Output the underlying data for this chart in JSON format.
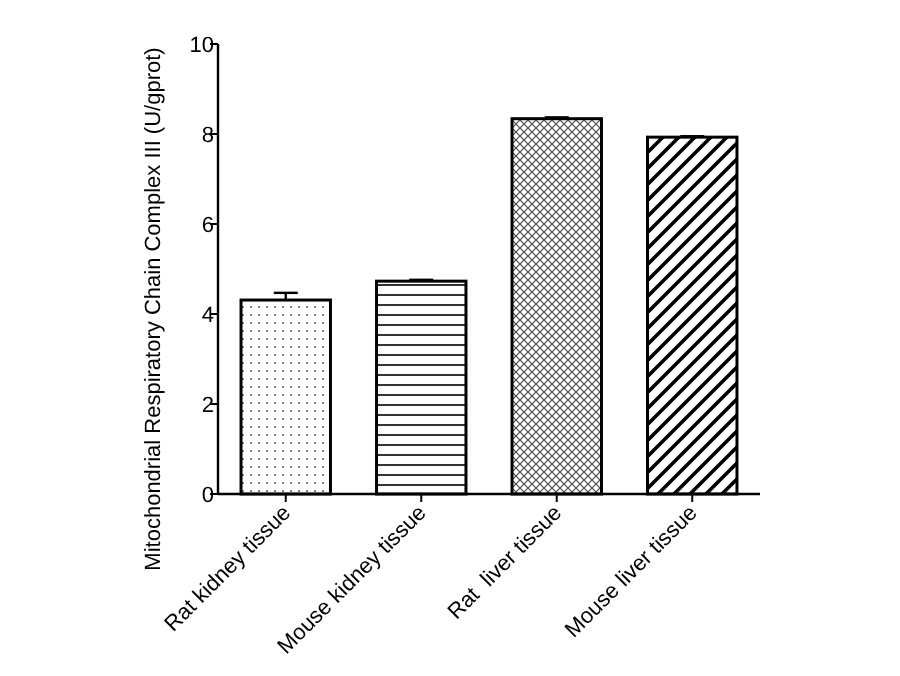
{
  "chart_data": {
    "type": "bar",
    "ylabel": "Mitochondrial Respiratory Chain Complex III (U/gprot)",
    "categories": [
      "Rat kidney tissue",
      "Mouse kidney tissue",
      "Rat  liver tissue",
      "Mouse liver tissue"
    ],
    "values": [
      4.31,
      4.73,
      8.34,
      7.93
    ],
    "errors": [
      0.16,
      0.03,
      0.03,
      0.02
    ],
    "color": "#000000",
    "ylim": [
      0,
      10
    ],
    "yticks": [
      0,
      2,
      4,
      6,
      8,
      10
    ],
    "grid": false
  }
}
